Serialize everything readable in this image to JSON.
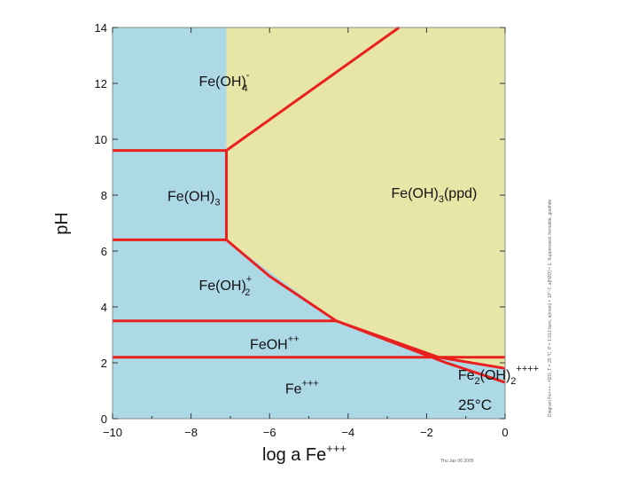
{
  "chart_data": {
    "type": "area",
    "xlabel": "log a Fe",
    "xlabel_sup": "+++",
    "ylabel": "pH",
    "xlim": [
      -10,
      0
    ],
    "ylim": [
      0,
      14
    ],
    "xticks": [
      -10,
      -8,
      -6,
      -4,
      -2,
      0
    ],
    "xtick_labels": [
      "−10",
      "−8",
      "−6",
      "−4",
      "−2",
      "0"
    ],
    "yticks": [
      0,
      2,
      4,
      6,
      8,
      10,
      12,
      14
    ],
    "ytick_labels": [
      "0",
      "2",
      "4",
      "6",
      "8",
      "10",
      "12",
      "14"
    ],
    "temperature_label": "25°C",
    "colors": {
      "aqueous": "#add8e6",
      "precipitate": "#e8e6a6",
      "boundary": "#e8201e",
      "frame": "#888888"
    },
    "precipitate_region": {
      "label": "Fe(OH)3(ppd)",
      "boundary": [
        [
          -7.1,
          14
        ],
        [
          -2.7,
          14
        ],
        [
          0,
          14
        ],
        [
          0,
          1.8
        ],
        [
          -1.7,
          2.2
        ],
        [
          -4.3,
          3.5
        ],
        [
          -7.1,
          6.4
        ],
        [
          -7.1,
          9.6
        ]
      ]
    },
    "boundaries": [
      {
        "points": [
          [
            -10,
            9.6
          ],
          [
            -7.1,
            9.6
          ]
        ]
      },
      {
        "points": [
          [
            -10,
            6.4
          ],
          [
            -7.1,
            6.4
          ]
        ]
      },
      {
        "points": [
          [
            -7.1,
            6.4
          ],
          [
            -7.1,
            9.6
          ]
        ]
      },
      {
        "points": [
          [
            -7.1,
            9.6
          ],
          [
            -2.7,
            14
          ]
        ]
      },
      {
        "points": [
          [
            -7.1,
            6.4
          ],
          [
            -6,
            5.1
          ],
          [
            -4.3,
            3.5
          ],
          [
            -1.7,
            2.2
          ],
          [
            0,
            1.8
          ]
        ]
      },
      {
        "points": [
          [
            -10,
            3.5
          ],
          [
            -4.3,
            3.5
          ]
        ]
      },
      {
        "points": [
          [
            -10,
            2.2
          ],
          [
            -0.5,
            2.2
          ],
          [
            0,
            2.2
          ]
        ]
      },
      {
        "points": [
          [
            -4.3,
            3.5
          ],
          [
            -1.5,
            2.0
          ],
          [
            0,
            1.3
          ]
        ]
      }
    ],
    "field_labels": [
      {
        "base": "Fe(OH)",
        "sub": "4",
        "sup": "-",
        "tail": "",
        "x": -7.8,
        "y": 11.9
      },
      {
        "base": "Fe(OH)",
        "sub": "3",
        "sup": "",
        "tail": "",
        "x": -8.6,
        "y": 7.8
      },
      {
        "base": "Fe(OH)",
        "sub": "3",
        "sup": "",
        "tail": "(ppd)",
        "x": -2.9,
        "y": 7.9
      },
      {
        "base": "Fe(OH)",
        "sub": "2",
        "sup": "+",
        "tail": "",
        "x": -7.8,
        "y": 4.6
      },
      {
        "base": "FeOH",
        "sub": "",
        "sup": "++",
        "tail": "",
        "x": -6.5,
        "y": 2.5
      },
      {
        "base": "Fe",
        "sub": "",
        "sup": "+++",
        "tail": "",
        "x": -5.6,
        "y": 0.9
      },
      {
        "base": "Fe",
        "sub": "2",
        "sup": "++++",
        "tail": "(OH)",
        "tail_sub": "2",
        "x": -1.2,
        "y": 1.4
      }
    ],
    "side_note": "Diagram Fe+++ - H2O, T = 25 °C, P = 1.013 bars, a[main] = 10^-7, a[H2O] = 1; Suppressed: hematite, goethite",
    "credit": "Thu Jan 06 2005"
  }
}
